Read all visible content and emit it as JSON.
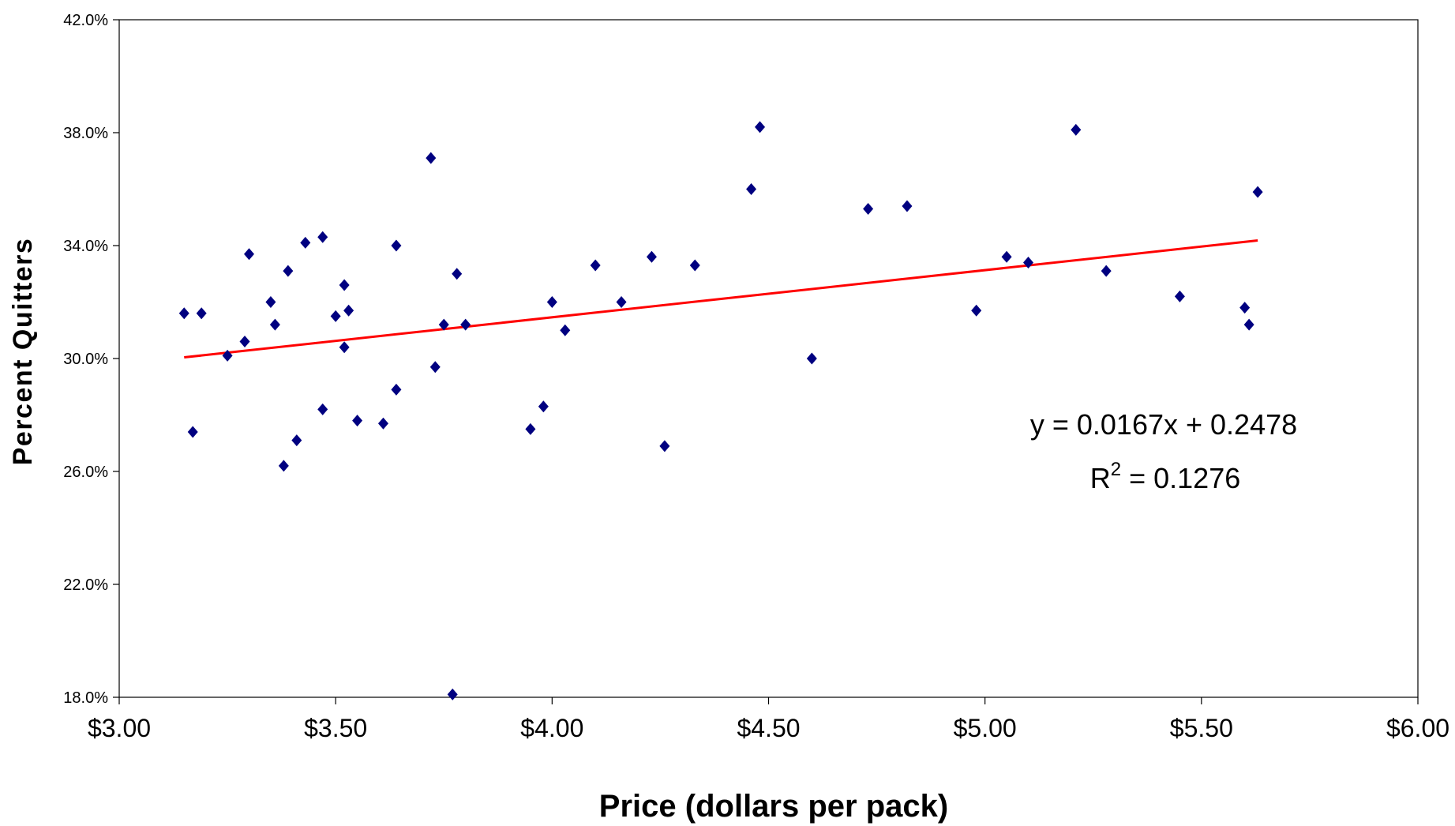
{
  "chart_data": {
    "type": "scatter",
    "xlabel": "Price (dollars per pack)",
    "ylabel": "Percent Quitters",
    "xlim": [
      3.0,
      6.0
    ],
    "ylim": [
      0.18,
      0.42
    ],
    "x_ticks": [
      3.0,
      3.5,
      4.0,
      4.5,
      5.0,
      5.5,
      6.0
    ],
    "x_tick_labels": [
      "$3.00",
      "$3.50",
      "$4.00",
      "$4.50",
      "$5.00",
      "$5.50",
      "$6.00"
    ],
    "y_ticks": [
      0.18,
      0.22,
      0.26,
      0.3,
      0.34,
      0.38,
      0.42
    ],
    "y_tick_labels": [
      "18.0%",
      "22.0%",
      "26.0%",
      "30.0%",
      "34.0%",
      "38.0%",
      "42.0%"
    ],
    "grid": false,
    "marker": "diamond",
    "marker_color": "#000080",
    "trendline_color": "#ff0000",
    "series": [
      {
        "points": [
          [
            3.15,
            0.316
          ],
          [
            3.17,
            0.274
          ],
          [
            3.19,
            0.316
          ],
          [
            3.25,
            0.301
          ],
          [
            3.29,
            0.306
          ],
          [
            3.3,
            0.337
          ],
          [
            3.35,
            0.32
          ],
          [
            3.36,
            0.312
          ],
          [
            3.38,
            0.262
          ],
          [
            3.39,
            0.331
          ],
          [
            3.41,
            0.271
          ],
          [
            3.43,
            0.341
          ],
          [
            3.47,
            0.343
          ],
          [
            3.47,
            0.282
          ],
          [
            3.5,
            0.315
          ],
          [
            3.52,
            0.326
          ],
          [
            3.52,
            0.304
          ],
          [
            3.53,
            0.317
          ],
          [
            3.55,
            0.278
          ],
          [
            3.61,
            0.277
          ],
          [
            3.64,
            0.34
          ],
          [
            3.64,
            0.289
          ],
          [
            3.72,
            0.371
          ],
          [
            3.73,
            0.297
          ],
          [
            3.75,
            0.312
          ],
          [
            3.77,
            0.181
          ],
          [
            3.78,
            0.33
          ],
          [
            3.8,
            0.312
          ],
          [
            3.95,
            0.275
          ],
          [
            3.98,
            0.283
          ],
          [
            4.0,
            0.32
          ],
          [
            4.03,
            0.31
          ],
          [
            4.1,
            0.333
          ],
          [
            4.16,
            0.32
          ],
          [
            4.23,
            0.336
          ],
          [
            4.26,
            0.269
          ],
          [
            4.33,
            0.333
          ],
          [
            4.46,
            0.36
          ],
          [
            4.48,
            0.382
          ],
          [
            4.6,
            0.3
          ],
          [
            4.73,
            0.353
          ],
          [
            4.82,
            0.354
          ],
          [
            4.98,
            0.317
          ],
          [
            5.05,
            0.336
          ],
          [
            5.1,
            0.334
          ],
          [
            5.21,
            0.381
          ],
          [
            5.28,
            0.331
          ],
          [
            5.45,
            0.322
          ],
          [
            5.6,
            0.318
          ],
          [
            5.61,
            0.312
          ],
          [
            5.63,
            0.359
          ]
        ]
      }
    ],
    "trendline": {
      "x_range": [
        3.15,
        5.63
      ],
      "slope": 0.0167,
      "intercept": 0.2478
    },
    "annotation": {
      "equation": "y = 0.0167x + 0.2478",
      "r2_prefix": "R",
      "r2_sup": "2",
      "r2_value": " = 0.1276"
    }
  }
}
